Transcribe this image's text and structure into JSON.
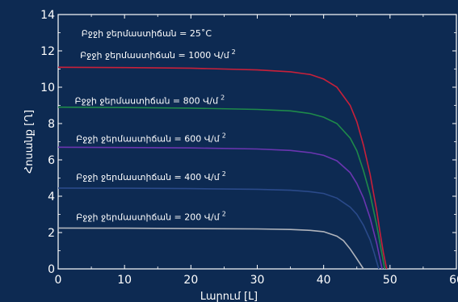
{
  "chart_data": {
    "type": "line",
    "xlabel": "Լարում [Լ]",
    "ylabel": "Հոսանք [Ղ]",
    "xlim": [
      0,
      60
    ],
    "ylim": [
      0,
      14
    ],
    "x_ticks": [
      0,
      10,
      20,
      30,
      40,
      50,
      60
    ],
    "y_ticks": [
      0,
      2,
      4,
      6,
      8,
      10,
      12,
      14
    ],
    "grid": false,
    "annotations": [
      {
        "text": "Բջջի ջերմաստիճան = 25˚C",
        "x": 3.5,
        "y": 12.8
      },
      {
        "text": "Բջջի ջերմաստիճան = 1000 Վ/մ",
        "sup": "2",
        "x": 3.3,
        "y": 11.6
      },
      {
        "text": "Բջջի ջերմաստիճան = 800 Վ/մ",
        "sup": "2",
        "x": 2.5,
        "y": 9.1
      },
      {
        "text": "Բջջի ջերմաստիճան = 600 Վ/մ",
        "sup": "2",
        "x": 2.7,
        "y": 7.0
      },
      {
        "text": "Բջջի ջերմաստիճան = 400 Վ/մ",
        "sup": "2",
        "x": 2.7,
        "y": 4.9
      },
      {
        "text": "Բջջի ջերմաստիճան = 200 Վ/մ",
        "sup": "2",
        "x": 2.7,
        "y": 2.7
      }
    ],
    "series": [
      {
        "color": "#c8203a",
        "x": [
          0,
          10,
          20,
          30,
          35,
          38,
          40,
          42,
          44,
          45,
          46,
          47,
          48,
          48.5,
          49,
          49.5
        ],
        "y": [
          11.1,
          11.08,
          11.05,
          10.95,
          10.85,
          10.7,
          10.45,
          10.0,
          9.0,
          8.1,
          6.8,
          5.2,
          3.2,
          2.0,
          0.9,
          0
        ]
      },
      {
        "color": "#1e8a4a",
        "x": [
          0,
          10,
          20,
          30,
          35,
          38,
          40,
          42,
          44,
          45,
          46,
          47,
          48,
          48.6,
          49.2
        ],
        "y": [
          8.9,
          8.88,
          8.85,
          8.78,
          8.7,
          8.55,
          8.35,
          8.0,
          7.2,
          6.5,
          5.4,
          4.1,
          2.4,
          1.2,
          0
        ]
      },
      {
        "color": "#6a35b0",
        "x": [
          0,
          10,
          20,
          30,
          35,
          38,
          40,
          42,
          44,
          45,
          46,
          47,
          48,
          48.8
        ],
        "y": [
          6.7,
          6.68,
          6.66,
          6.6,
          6.52,
          6.4,
          6.25,
          5.95,
          5.3,
          4.7,
          3.9,
          2.8,
          1.4,
          0
        ]
      },
      {
        "color": "#2a4a8a",
        "x": [
          0,
          10,
          20,
          30,
          35,
          38,
          40,
          42,
          44,
          45,
          46,
          47,
          47.6,
          48.3
        ],
        "y": [
          4.45,
          4.44,
          4.42,
          4.38,
          4.33,
          4.25,
          4.15,
          3.9,
          3.4,
          3.0,
          2.4,
          1.6,
          0.9,
          0
        ]
      },
      {
        "color": "#b0b4bc",
        "x": [
          0,
          10,
          20,
          30,
          35,
          38,
          40,
          42,
          43,
          44,
          45,
          46
        ],
        "y": [
          2.25,
          2.24,
          2.22,
          2.2,
          2.17,
          2.12,
          2.05,
          1.8,
          1.55,
          1.1,
          0.55,
          0
        ]
      }
    ]
  }
}
